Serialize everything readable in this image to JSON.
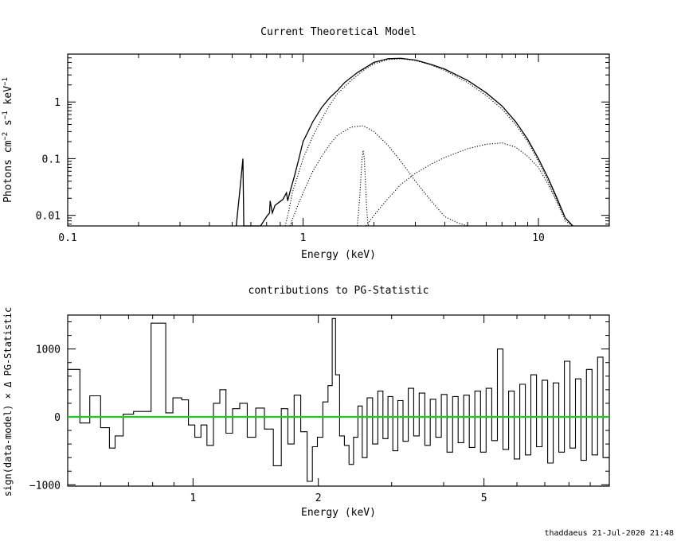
{
  "chart_data": [
    {
      "type": "line",
      "title": "Current Theoretical Model",
      "xlabel": "Energy (keV)",
      "ylabel": "Photons cm^-2 s^-1 keV^-1",
      "xscale": "log",
      "yscale": "log",
      "xlim": [
        0.1,
        20
      ],
      "ylim": [
        0.0065,
        7
      ],
      "xticks": [
        {
          "v": 0.1,
          "label": "0.1"
        },
        {
          "v": 1,
          "label": "1"
        },
        {
          "v": 10,
          "label": "10"
        }
      ],
      "yticks": [
        {
          "v": 0.01,
          "label": "0.01"
        },
        {
          "v": 0.1,
          "label": "0.1"
        },
        {
          "v": 1,
          "label": "1"
        }
      ],
      "series": [
        {
          "style": "solid",
          "x": [
            0.52,
            0.54,
            0.555,
            0.56,
            0.58,
            0.6,
            0.63,
            0.66,
            0.7,
            0.72,
            0.725,
            0.74,
            0.76,
            0.79,
            0.82,
            0.85,
            0.86,
            0.88,
            0.92,
            0.96,
            1.0,
            1.05,
            1.1,
            1.2,
            1.3,
            1.4,
            1.5,
            1.7,
            2.0,
            2.3,
            2.6,
            3.0,
            3.5,
            4.0,
            5.0,
            6.0,
            7.0,
            8.0,
            9.0,
            10.0,
            11.0,
            12.0,
            13.0,
            14.0
          ],
          "y": [
            0.0065,
            0.03,
            0.1,
            0.0065,
            0.0065,
            0.0065,
            0.0065,
            0.0065,
            0.0095,
            0.011,
            0.018,
            0.011,
            0.015,
            0.017,
            0.019,
            0.025,
            0.018,
            0.026,
            0.05,
            0.1,
            0.2,
            0.3,
            0.45,
            0.8,
            1.2,
            1.6,
            2.2,
            3.3,
            5.0,
            5.8,
            5.9,
            5.5,
            4.6,
            3.8,
            2.4,
            1.45,
            0.85,
            0.45,
            0.22,
            0.1,
            0.045,
            0.02,
            0.009,
            0.0065
          ]
        },
        {
          "style": "dotted",
          "x": [
            0.84,
            0.87,
            0.9,
            0.95,
            1.0,
            1.1,
            1.2,
            1.3,
            1.4,
            1.6,
            1.8,
            2.0,
            2.3,
            2.6,
            3.0,
            3.5,
            4.0,
            5.0,
            6.0,
            7.0,
            8.0,
            9.0,
            10.0,
            11.0,
            12.0,
            13.0,
            14.0
          ],
          "y": [
            0.0065,
            0.012,
            0.025,
            0.05,
            0.1,
            0.25,
            0.5,
            0.9,
            1.4,
            2.4,
            3.6,
            4.7,
            5.6,
            5.8,
            5.4,
            4.5,
            3.6,
            2.2,
            1.3,
            0.75,
            0.4,
            0.2,
            0.09,
            0.04,
            0.018,
            0.009,
            0.0065
          ]
        },
        {
          "style": "dotted",
          "x": [
            0.88,
            0.95,
            1.0,
            1.1,
            1.2,
            1.3,
            1.4,
            1.6,
            1.8,
            2.0,
            2.3,
            2.6,
            3.0,
            3.5,
            4.0,
            4.5,
            5.0
          ],
          "y": [
            0.0065,
            0.015,
            0.025,
            0.06,
            0.11,
            0.18,
            0.26,
            0.36,
            0.38,
            0.3,
            0.17,
            0.09,
            0.04,
            0.018,
            0.0095,
            0.0075,
            0.0065
          ]
        },
        {
          "style": "dotted",
          "x": [
            1.7,
            1.74,
            1.78,
            1.8,
            1.82,
            1.84,
            1.86,
            1.88,
            1.9
          ],
          "y": [
            0.0065,
            0.02,
            0.1,
            0.14,
            0.1,
            0.04,
            0.015,
            0.008,
            0.0065
          ]
        },
        {
          "style": "dotted",
          "x": [
            1.85,
            2.0,
            2.3,
            2.6,
            3.0,
            3.5,
            4.0,
            5.0,
            6.0,
            7.0,
            8.0,
            9.0,
            10.0,
            11.0,
            12.0,
            13.0,
            14.0
          ],
          "y": [
            0.0065,
            0.01,
            0.02,
            0.035,
            0.055,
            0.08,
            0.105,
            0.15,
            0.18,
            0.19,
            0.16,
            0.11,
            0.07,
            0.035,
            0.017,
            0.008,
            0.0065
          ]
        }
      ]
    },
    {
      "type": "line",
      "title": "contributions to PG-Statistic",
      "xlabel": "Energy (keV)",
      "ylabel": "sign(data-model) × Δ PG-Statistic",
      "xscale": "log",
      "xlim": [
        0.5,
        10
      ],
      "ylim": [
        -1020,
        1500
      ],
      "xticks": [
        {
          "v": 1,
          "label": "1"
        },
        {
          "v": 2,
          "label": "2"
        },
        {
          "v": 5,
          "label": "5"
        }
      ],
      "yticks": [
        {
          "v": -1000,
          "label": "−1000"
        },
        {
          "v": 0,
          "label": "0"
        },
        {
          "v": 1000,
          "label": "1000"
        }
      ],
      "zero_line_color": "#00e000",
      "spikes": [
        {
          "x": 0.52,
          "y": 700
        },
        {
          "x": 0.55,
          "y": -90
        },
        {
          "x": 0.58,
          "y": 310
        },
        {
          "x": 0.62,
          "y": -160
        },
        {
          "x": 0.64,
          "y": -460
        },
        {
          "x": 0.66,
          "y": -280
        },
        {
          "x": 0.7,
          "y": 40
        },
        {
          "x": 0.74,
          "y": 80
        },
        {
          "x": 0.85,
          "y": 1380
        },
        {
          "x": 0.87,
          "y": 60
        },
        {
          "x": 0.92,
          "y": 280
        },
        {
          "x": 0.96,
          "y": 250
        },
        {
          "x": 0.99,
          "y": -120
        },
        {
          "x": 1.03,
          "y": -300
        },
        {
          "x": 1.06,
          "y": -120
        },
        {
          "x": 1.1,
          "y": -420
        },
        {
          "x": 1.14,
          "y": 200
        },
        {
          "x": 1.18,
          "y": 400
        },
        {
          "x": 1.22,
          "y": -240
        },
        {
          "x": 1.27,
          "y": 120
        },
        {
          "x": 1.32,
          "y": 200
        },
        {
          "x": 1.38,
          "y": -300
        },
        {
          "x": 1.45,
          "y": 130
        },
        {
          "x": 1.52,
          "y": -180
        },
        {
          "x": 1.6,
          "y": -720
        },
        {
          "x": 1.66,
          "y": 120
        },
        {
          "x": 1.72,
          "y": -400
        },
        {
          "x": 1.78,
          "y": 320
        },
        {
          "x": 1.85,
          "y": -220
        },
        {
          "x": 1.91,
          "y": -950
        },
        {
          "x": 1.96,
          "y": -440
        },
        {
          "x": 2.02,
          "y": -300
        },
        {
          "x": 2.08,
          "y": 220
        },
        {
          "x": 2.14,
          "y": 460
        },
        {
          "x": 2.18,
          "y": 1450
        },
        {
          "x": 2.22,
          "y": 620
        },
        {
          "x": 2.28,
          "y": -280
        },
        {
          "x": 2.34,
          "y": -420
        },
        {
          "x": 2.4,
          "y": -700
        },
        {
          "x": 2.46,
          "y": -300
        },
        {
          "x": 2.52,
          "y": 160
        },
        {
          "x": 2.58,
          "y": -600
        },
        {
          "x": 2.66,
          "y": 280
        },
        {
          "x": 2.74,
          "y": -400
        },
        {
          "x": 2.82,
          "y": 380
        },
        {
          "x": 2.9,
          "y": -320
        },
        {
          "x": 2.98,
          "y": 300
        },
        {
          "x": 3.06,
          "y": -500
        },
        {
          "x": 3.15,
          "y": 240
        },
        {
          "x": 3.24,
          "y": -360
        },
        {
          "x": 3.34,
          "y": 420
        },
        {
          "x": 3.44,
          "y": -280
        },
        {
          "x": 3.55,
          "y": 350
        },
        {
          "x": 3.66,
          "y": -420
        },
        {
          "x": 3.77,
          "y": 260
        },
        {
          "x": 3.89,
          "y": -300
        },
        {
          "x": 4.01,
          "y": 330
        },
        {
          "x": 4.14,
          "y": -520
        },
        {
          "x": 4.27,
          "y": 300
        },
        {
          "x": 4.4,
          "y": -380
        },
        {
          "x": 4.54,
          "y": 320
        },
        {
          "x": 4.68,
          "y": -450
        },
        {
          "x": 4.83,
          "y": 380
        },
        {
          "x": 4.98,
          "y": -520
        },
        {
          "x": 5.14,
          "y": 420
        },
        {
          "x": 5.3,
          "y": -350
        },
        {
          "x": 5.47,
          "y": 1000
        },
        {
          "x": 5.64,
          "y": -480
        },
        {
          "x": 5.82,
          "y": 380
        },
        {
          "x": 6.0,
          "y": -620
        },
        {
          "x": 6.19,
          "y": 480
        },
        {
          "x": 6.38,
          "y": -560
        },
        {
          "x": 6.58,
          "y": 620
        },
        {
          "x": 6.79,
          "y": -440
        },
        {
          "x": 7.0,
          "y": 540
        },
        {
          "x": 7.22,
          "y": -680
        },
        {
          "x": 7.45,
          "y": 500
        },
        {
          "x": 7.68,
          "y": -520
        },
        {
          "x": 7.92,
          "y": 820
        },
        {
          "x": 8.17,
          "y": -460
        },
        {
          "x": 8.42,
          "y": 560
        },
        {
          "x": 8.68,
          "y": -640
        },
        {
          "x": 8.95,
          "y": 700
        },
        {
          "x": 9.23,
          "y": -560
        },
        {
          "x": 9.52,
          "y": 880
        },
        {
          "x": 9.8,
          "y": -600
        }
      ]
    }
  ],
  "footer": "thaddaeus 21-Jul-2020 21:48"
}
